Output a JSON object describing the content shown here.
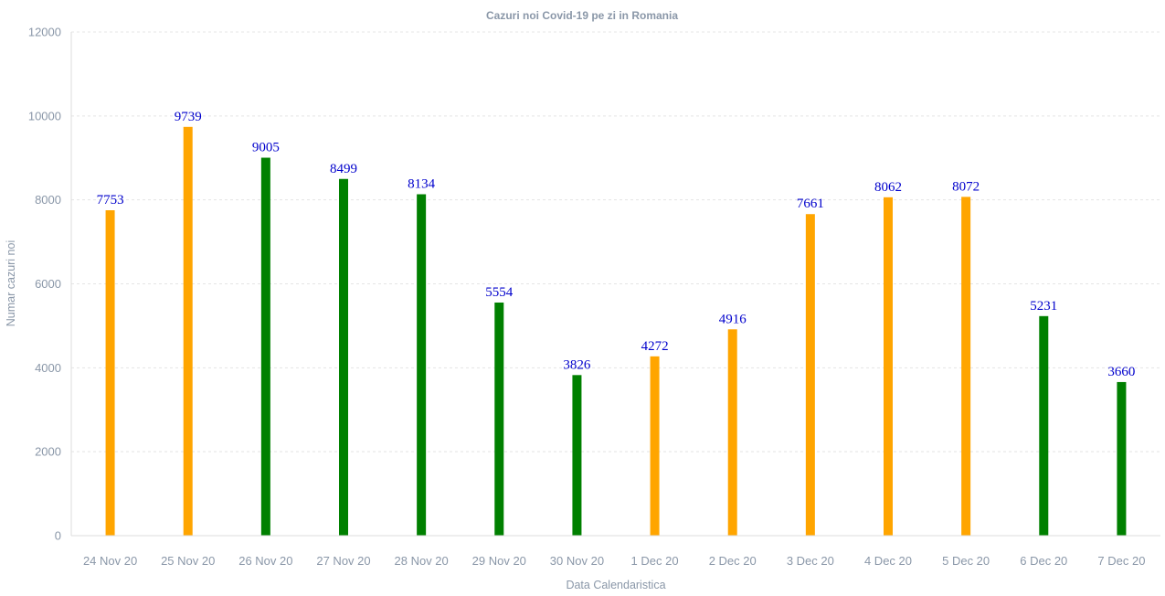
{
  "chart_data": {
    "type": "bar",
    "title": "Cazuri noi Covid-19 pe zi in Romania",
    "xlabel": "Data Calendaristica",
    "ylabel": "Numar cazuri noi",
    "ylim": [
      0,
      12000
    ],
    "yticks": [
      0,
      2000,
      4000,
      6000,
      8000,
      10000,
      12000
    ],
    "grid": true,
    "categories": [
      "24 Nov 20",
      "25 Nov 20",
      "26 Nov 20",
      "27 Nov 20",
      "28 Nov 20",
      "29 Nov 20",
      "30 Nov 20",
      "1 Dec 20",
      "2 Dec 20",
      "3 Dec 20",
      "4 Dec 20",
      "5 Dec 20",
      "6 Dec 20",
      "7 Dec 20"
    ],
    "values": [
      7753,
      9739,
      9005,
      8499,
      8134,
      5554,
      3826,
      4272,
      4916,
      7661,
      8062,
      8072,
      5231,
      3660
    ],
    "colors": [
      "#ffa500",
      "#ffa500",
      "#008000",
      "#008000",
      "#008000",
      "#008000",
      "#008000",
      "#ffa500",
      "#ffa500",
      "#ffa500",
      "#ffa500",
      "#ffa500",
      "#008000",
      "#008000"
    ]
  }
}
